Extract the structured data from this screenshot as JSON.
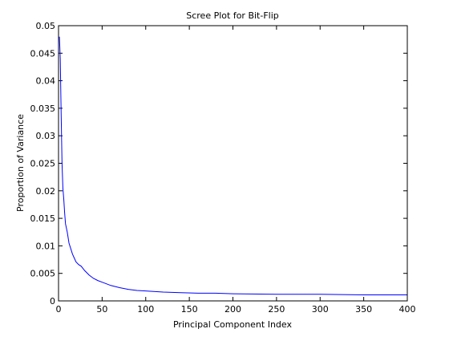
{
  "chart_data": {
    "type": "line",
    "title": "Scree Plot for Bit-Flip",
    "xlabel": "Principal Component Index",
    "ylabel": "Proportion of Variance",
    "xlim": [
      0,
      400
    ],
    "ylim": [
      0,
      0.05
    ],
    "x_ticks": [
      0,
      50,
      100,
      150,
      200,
      250,
      300,
      350,
      400
    ],
    "y_ticks": [
      0,
      0.005,
      0.01,
      0.015,
      0.02,
      0.025,
      0.03,
      0.035,
      0.04,
      0.045,
      0.05
    ],
    "x_tick_labels": [
      "0",
      "50",
      "100",
      "150",
      "200",
      "250",
      "300",
      "350",
      "400"
    ],
    "y_tick_labels": [
      "0",
      "0.005",
      "0.01",
      "0.015",
      "0.02",
      "0.025",
      "0.03",
      "0.035",
      "0.04",
      "0.045",
      "0.05"
    ],
    "grid": false,
    "series": [
      {
        "color": "#0000ff",
        "x": [
          1,
          2,
          3,
          4,
          5,
          6,
          7,
          8,
          10,
          12,
          14,
          16,
          18,
          20,
          23,
          26,
          30,
          35,
          40,
          45,
          50,
          60,
          70,
          80,
          90,
          100,
          120,
          140,
          160,
          180,
          200,
          250,
          300,
          350,
          400
        ],
        "y": [
          0.048,
          0.044,
          0.034,
          0.025,
          0.0205,
          0.0185,
          0.016,
          0.014,
          0.0125,
          0.0105,
          0.0095,
          0.0085,
          0.0078,
          0.0071,
          0.0066,
          0.0063,
          0.0055,
          0.0047,
          0.0041,
          0.0037,
          0.0034,
          0.0028,
          0.0024,
          0.0021,
          0.0019,
          0.0018,
          0.0016,
          0.0015,
          0.0014,
          0.0014,
          0.0013,
          0.0012,
          0.0012,
          0.0011,
          0.0011
        ]
      }
    ]
  }
}
